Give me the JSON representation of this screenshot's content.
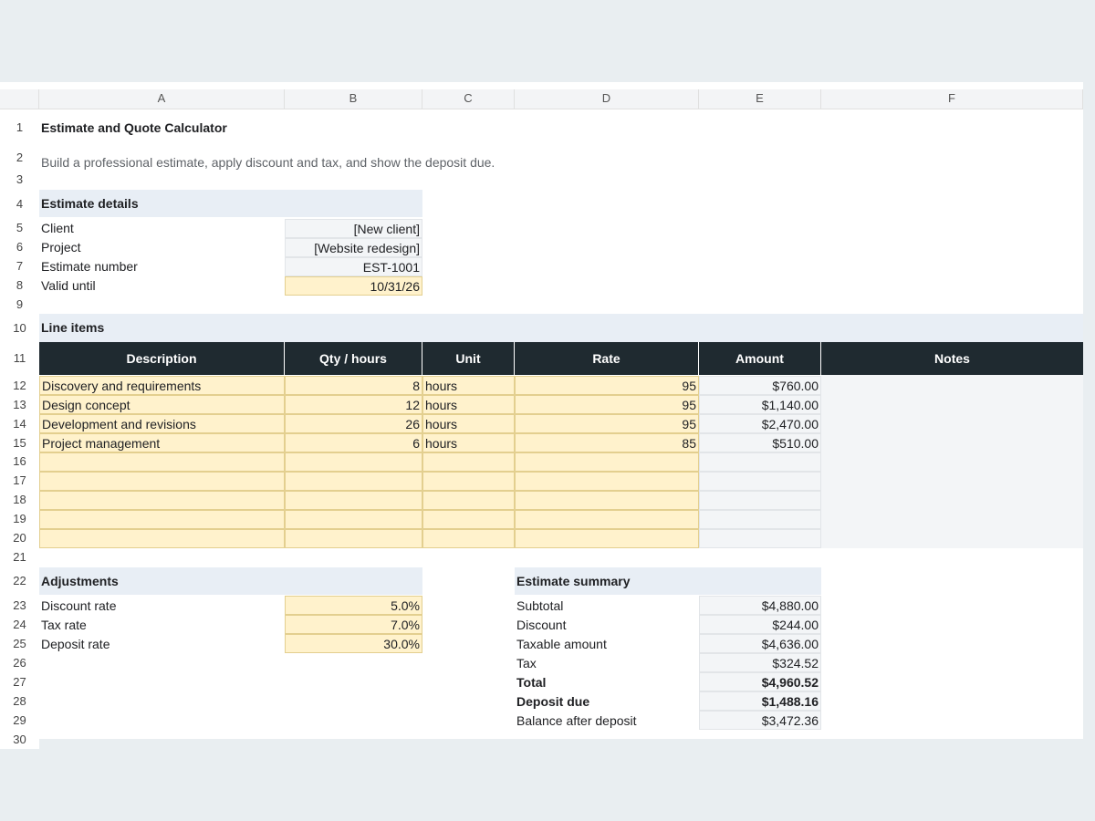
{
  "columns": [
    "A",
    "B",
    "C",
    "D",
    "E",
    "F"
  ],
  "rows": [
    "1",
    "2",
    "3",
    "4",
    "5",
    "6",
    "7",
    "8",
    "9",
    "10",
    "11",
    "12",
    "13",
    "14",
    "15",
    "16",
    "17",
    "18",
    "19",
    "20",
    "21",
    "22",
    "23",
    "24",
    "25",
    "26",
    "27",
    "28",
    "29",
    "30"
  ],
  "title": "Estimate and Quote Calculator",
  "subtitle": "Build a professional estimate, apply discount and tax, and show the deposit due.",
  "estimate_details": {
    "heading": "Estimate details",
    "fields": [
      {
        "label": "Client",
        "value": "[New client]"
      },
      {
        "label": "Project",
        "value": "[Website redesign]"
      },
      {
        "label": "Estimate number",
        "value": "EST-1001"
      },
      {
        "label": "Valid until",
        "value": "10/31/26"
      }
    ]
  },
  "line_items": {
    "heading": "Line items",
    "headers": [
      "Description",
      "Qty / hours",
      "Unit",
      "Rate",
      "Amount",
      "Notes"
    ],
    "items": [
      {
        "description": "Discovery and requirements",
        "qty": "8",
        "unit": "hours",
        "rate": "95",
        "amount": "$760.00"
      },
      {
        "description": "Design concept",
        "qty": "12",
        "unit": "hours",
        "rate": "95",
        "amount": "$1,140.00"
      },
      {
        "description": "Development and revisions",
        "qty": "26",
        "unit": "hours",
        "rate": "95",
        "amount": "$2,470.00"
      },
      {
        "description": "Project management",
        "qty": "6",
        "unit": "hours",
        "rate": "85",
        "amount": "$510.00"
      }
    ]
  },
  "adjustments": {
    "heading": "Adjustments",
    "fields": [
      {
        "label": "Discount rate",
        "value": "5.0%"
      },
      {
        "label": "Tax rate",
        "value": "7.0%"
      },
      {
        "label": "Deposit rate",
        "value": "30.0%"
      }
    ]
  },
  "summary": {
    "heading": "Estimate summary",
    "rows": [
      {
        "label": "Subtotal",
        "value": "$4,880.00"
      },
      {
        "label": "Discount",
        "value": "$244.00"
      },
      {
        "label": "Taxable amount",
        "value": "$4,636.00"
      },
      {
        "label": "Tax",
        "value": "$324.52"
      },
      {
        "label": "Total",
        "value": "$4,960.52"
      },
      {
        "label": "Deposit due",
        "value": "$1,488.16"
      },
      {
        "label": "Balance after deposit",
        "value": "$3,472.36"
      }
    ]
  }
}
